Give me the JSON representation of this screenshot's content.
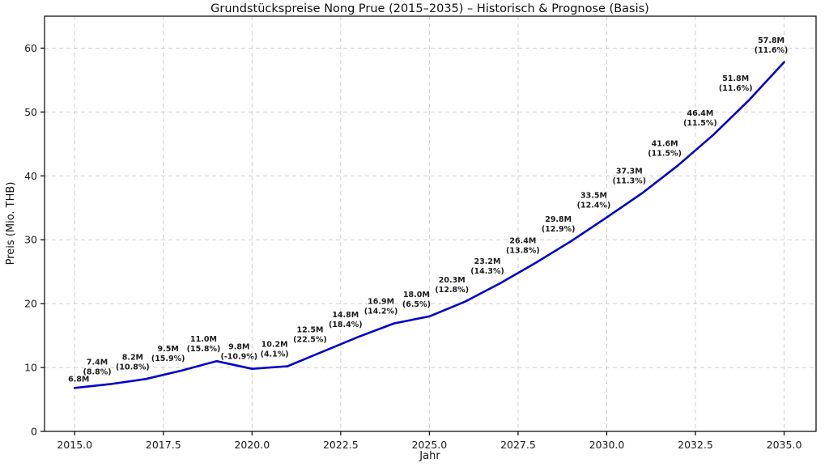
{
  "chart_data": {
    "type": "line",
    "title": "Grundstückspreise Nong Prue (2015–2035) – Historisch & Prognose (Basis)",
    "xlabel": "Jahr",
    "ylabel": "Preis (Mio. THB)",
    "xlim": [
      2014.15,
      2035.9
    ],
    "ylim": [
      0,
      65
    ],
    "grid": true,
    "legend": "none",
    "line_color": "#0000cd",
    "annotation_color": "#1a1a1a",
    "xticks": [
      {
        "v": 2015.0,
        "label": "2015.0"
      },
      {
        "v": 2017.5,
        "label": "2017.5"
      },
      {
        "v": 2020.0,
        "label": "2020.0"
      },
      {
        "v": 2022.5,
        "label": "2022.5"
      },
      {
        "v": 2025.0,
        "label": "2025.0"
      },
      {
        "v": 2027.5,
        "label": "2027.5"
      },
      {
        "v": 2030.0,
        "label": "2030.0"
      },
      {
        "v": 2032.5,
        "label": "2032.5"
      },
      {
        "v": 2035.0,
        "label": "2035.0"
      }
    ],
    "yticks": [
      {
        "v": 0,
        "label": "0"
      },
      {
        "v": 10,
        "label": "10"
      },
      {
        "v": 20,
        "label": "20"
      },
      {
        "v": 30,
        "label": "30"
      },
      {
        "v": 40,
        "label": "40"
      },
      {
        "v": 50,
        "label": "50"
      },
      {
        "v": 60,
        "label": "60"
      }
    ],
    "points": [
      {
        "x": 2015,
        "y": 6.8,
        "label": "6.8M",
        "pct": null
      },
      {
        "x": 2016,
        "y": 7.4,
        "label": "7.4M",
        "pct": "(8.8%)"
      },
      {
        "x": 2017,
        "y": 8.2,
        "label": "8.2M",
        "pct": "(10.8%)"
      },
      {
        "x": 2018,
        "y": 9.5,
        "label": "9.5M",
        "pct": "(15.9%)"
      },
      {
        "x": 2019,
        "y": 11.0,
        "label": "11.0M",
        "pct": "(15.8%)"
      },
      {
        "x": 2020,
        "y": 9.8,
        "label": "9.8M",
        "pct": "(-10.9%)"
      },
      {
        "x": 2021,
        "y": 10.2,
        "label": "10.2M",
        "pct": "(4.1%)"
      },
      {
        "x": 2022,
        "y": 12.5,
        "label": "12.5M",
        "pct": "(22.5%)"
      },
      {
        "x": 2023,
        "y": 14.8,
        "label": "14.8M",
        "pct": "(18.4%)"
      },
      {
        "x": 2024,
        "y": 16.9,
        "label": "16.9M",
        "pct": "(14.2%)"
      },
      {
        "x": 2025,
        "y": 18.0,
        "label": "18.0M",
        "pct": "(6.5%)"
      },
      {
        "x": 2026,
        "y": 20.3,
        "label": "20.3M",
        "pct": "(12.8%)"
      },
      {
        "x": 2027,
        "y": 23.2,
        "label": "23.2M",
        "pct": "(14.3%)"
      },
      {
        "x": 2028,
        "y": 26.4,
        "label": "26.4M",
        "pct": "(13.8%)"
      },
      {
        "x": 2029,
        "y": 29.8,
        "label": "29.8M",
        "pct": "(12.9%)"
      },
      {
        "x": 2030,
        "y": 33.5,
        "label": "33.5M",
        "pct": "(12.4%)"
      },
      {
        "x": 2031,
        "y": 37.3,
        "label": "37.3M",
        "pct": "(11.3%)"
      },
      {
        "x": 2032,
        "y": 41.6,
        "label": "41.6M",
        "pct": "(11.5%)"
      },
      {
        "x": 2033,
        "y": 46.4,
        "label": "46.4M",
        "pct": "(11.5%)"
      },
      {
        "x": 2034,
        "y": 51.8,
        "label": "51.8M",
        "pct": "(11.6%)"
      },
      {
        "x": 2035,
        "y": 57.8,
        "label": "57.8M",
        "pct": "(11.6%)"
      }
    ]
  }
}
